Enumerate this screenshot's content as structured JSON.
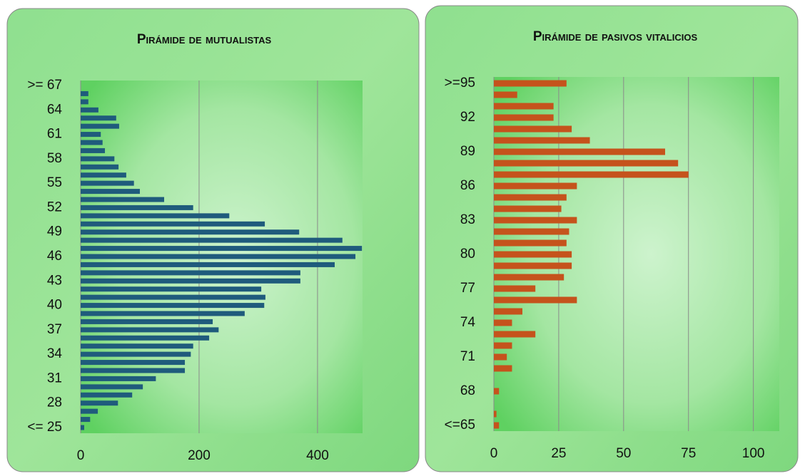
{
  "chart_data": [
    {
      "type": "bar",
      "orientation": "horizontal",
      "title": "Pirámide de mutualistas",
      "categories": [
        "<= 25",
        null,
        null,
        "28",
        null,
        null,
        "31",
        null,
        null,
        "34",
        null,
        null,
        "37",
        null,
        null,
        "40",
        null,
        null,
        "43",
        null,
        null,
        "46",
        null,
        null,
        "49",
        null,
        null,
        "52",
        null,
        null,
        "55",
        null,
        null,
        "58",
        null,
        null,
        "61",
        null,
        null,
        "64",
        null,
        null,
        ">= 67"
      ],
      "values": [
        6,
        16,
        29,
        63,
        87,
        105,
        127,
        176,
        176,
        186,
        190,
        217,
        233,
        223,
        277,
        310,
        312,
        305,
        371,
        371,
        429,
        464,
        475,
        442,
        369,
        311,
        251,
        190,
        141,
        100,
        90,
        77,
        64,
        57,
        41,
        37,
        34,
        65,
        60,
        30,
        13,
        13,
        0
      ],
      "color": "#1f5b7c",
      "xlim": [
        0,
        476
      ],
      "xticks": [
        0,
        200,
        400
      ],
      "grid": true
    },
    {
      "type": "bar",
      "orientation": "horizontal",
      "title": "Pirámide de pasivos vitalicios",
      "categories": [
        "<=65",
        null,
        null,
        "68",
        null,
        null,
        "71",
        null,
        null,
        "74",
        null,
        null,
        "77",
        null,
        null,
        "80",
        null,
        null,
        "83",
        null,
        null,
        "86",
        null,
        null,
        "89",
        null,
        null,
        "92",
        null,
        null,
        ">=95"
      ],
      "values": [
        2,
        1,
        0,
        2,
        0,
        7,
        5,
        7,
        16,
        7,
        11,
        32,
        16,
        27,
        30,
        30,
        28,
        29,
        32,
        26,
        28,
        32,
        75,
        71,
        66,
        37,
        30,
        23,
        23,
        9,
        28
      ],
      "color": "#c5531c",
      "xlim": [
        0,
        110
      ],
      "xticks": [
        0,
        25,
        50,
        75,
        100
      ],
      "grid": true
    }
  ]
}
